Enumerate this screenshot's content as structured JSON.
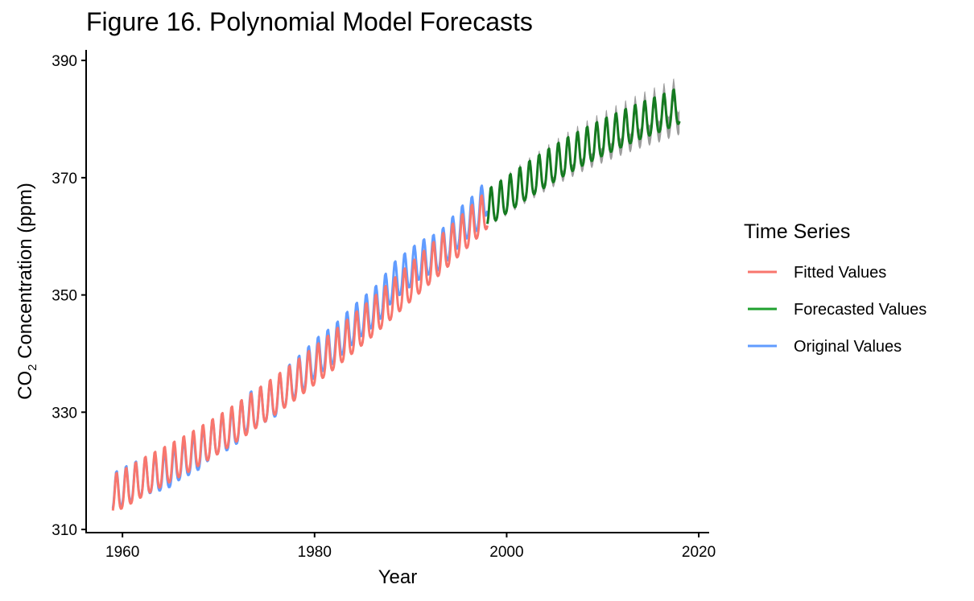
{
  "chart_data": {
    "type": "line",
    "title": "Figure 16. Polynomial Model Forecasts",
    "xlabel": "Year",
    "ylabel_main": "CO",
    "ylabel_sub": "2",
    "ylabel_rest": " Concentration (ppm)",
    "xlim": [
      1956.3,
      2021
    ],
    "ylim": [
      309.6,
      391.8
    ],
    "x_ticks": [
      1960,
      1980,
      2000,
      2020
    ],
    "x_tick_labels": [
      "1960",
      "1980",
      "2000",
      "2020"
    ],
    "y_ticks": [
      310,
      330,
      350,
      370,
      390
    ],
    "y_tick_labels": [
      "310",
      "330",
      "350",
      "370",
      "390"
    ],
    "grid": false,
    "legend": {
      "title": "Time Series",
      "placement": "right",
      "entries": [
        {
          "label": "Fitted Values",
          "color": "#F8766D"
        },
        {
          "label": "Forecasted Values",
          "color": "#1FA02F"
        },
        {
          "label": "Original Values",
          "color": "#619CFF"
        }
      ]
    },
    "series": [
      {
        "name": "Original Values",
        "color": "#619CFF",
        "x": [
          1959.0,
          1960.0,
          1961.0,
          1962.0,
          1963.0,
          1964.0,
          1965.0,
          1966.0,
          1967.0,
          1968.0,
          1969.0,
          1970.0,
          1971.0,
          1972.0,
          1973.0,
          1974.0,
          1975.0,
          1976.0,
          1977.0,
          1978.0,
          1979.0,
          1980.0,
          1981.0,
          1982.0,
          1983.0,
          1984.0,
          1985.0,
          1986.0,
          1987.0,
          1988.0,
          1989.0,
          1990.0,
          1991.0,
          1992.0,
          1993.0,
          1994.0,
          1995.0,
          1996.0,
          1997.0,
          1998.0
        ],
        "trend": [
          315.9,
          316.8,
          317.6,
          318.4,
          319.0,
          319.4,
          320.0,
          321.3,
          322.1,
          323.0,
          324.6,
          325.7,
          326.3,
          327.5,
          329.6,
          330.3,
          331.2,
          332.1,
          333.8,
          335.4,
          336.8,
          338.7,
          339.9,
          341.1,
          342.8,
          344.4,
          345.9,
          347.2,
          348.9,
          351.5,
          352.9,
          354.2,
          355.5,
          356.3,
          357.0,
          358.9,
          360.9,
          362.6,
          363.8,
          366.7
        ],
        "amplitude": 6.5
      },
      {
        "name": "Fitted Values",
        "color": "#F8766D",
        "x": [
          1959.0,
          1960.0,
          1961.0,
          1962.0,
          1963.0,
          1964.0,
          1965.0,
          1966.0,
          1967.0,
          1968.0,
          1969.0,
          1970.0,
          1971.0,
          1972.0,
          1973.0,
          1974.0,
          1975.0,
          1976.0,
          1977.0,
          1978.0,
          1979.0,
          1980.0,
          1981.0,
          1982.0,
          1983.0,
          1984.0,
          1985.0,
          1986.0,
          1987.0,
          1988.0,
          1989.0,
          1990.0,
          1991.0,
          1992.0,
          1993.0,
          1994.0,
          1995.0,
          1996.0,
          1997.0,
          1998.0
        ],
        "trend": [
          315.6,
          316.4,
          317.3,
          318.3,
          319.2,
          320.0,
          320.9,
          321.8,
          322.7,
          323.7,
          324.7,
          325.7,
          326.8,
          327.9,
          329.0,
          330.2,
          331.3,
          332.5,
          333.7,
          334.9,
          336.2,
          337.5,
          338.8,
          340.1,
          341.5,
          342.9,
          344.3,
          345.7,
          347.2,
          348.7,
          350.2,
          351.7,
          353.2,
          354.7,
          356.2,
          357.8,
          359.4,
          361.0,
          362.6,
          364.2
        ],
        "amplitude": 6.6
      },
      {
        "name": "Forecasted Values",
        "color": "#1FA02F",
        "x": [
          1998.0,
          2000.0,
          2002.0,
          2004.0,
          2006.0,
          2008.0,
          2010.0,
          2012.0,
          2014.0,
          2016.0,
          2018.0
        ],
        "trend": [
          364.4,
          366.6,
          368.9,
          371.0,
          373.0,
          374.8,
          376.4,
          377.9,
          379.3,
          380.5,
          381.9
        ],
        "amplitude": 6.3,
        "band_halfwidth_start": 0.3,
        "band_halfwidth_end": 2.0,
        "band_color": "#8C8C8C"
      }
    ]
  }
}
